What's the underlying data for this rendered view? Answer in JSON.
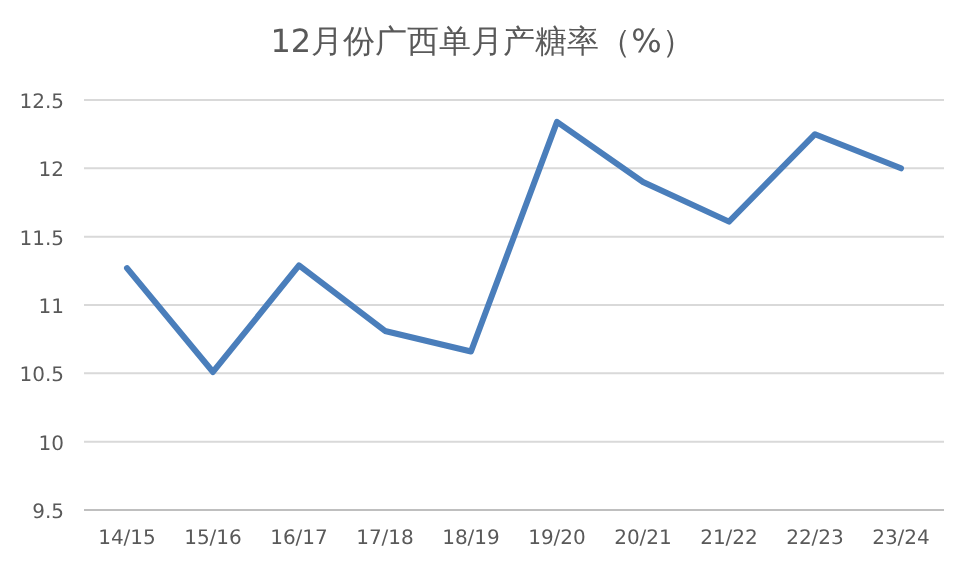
{
  "chart_data": {
    "type": "line",
    "title": "12月份广西单月产糖率（%）",
    "categories": [
      "14/15",
      "15/16",
      "16/17",
      "17/18",
      "18/19",
      "19/20",
      "20/21",
      "21/22",
      "22/23",
      "23/24"
    ],
    "values": [
      11.27,
      10.51,
      11.29,
      10.81,
      10.66,
      12.34,
      11.9,
      11.61,
      12.25,
      12.0
    ],
    "color": "#4a7ebb",
    "ylim": [
      9.5,
      12.5
    ],
    "yticks": [
      9.5,
      10,
      10.5,
      11,
      11.5,
      12,
      12.5
    ],
    "grid": "y"
  }
}
